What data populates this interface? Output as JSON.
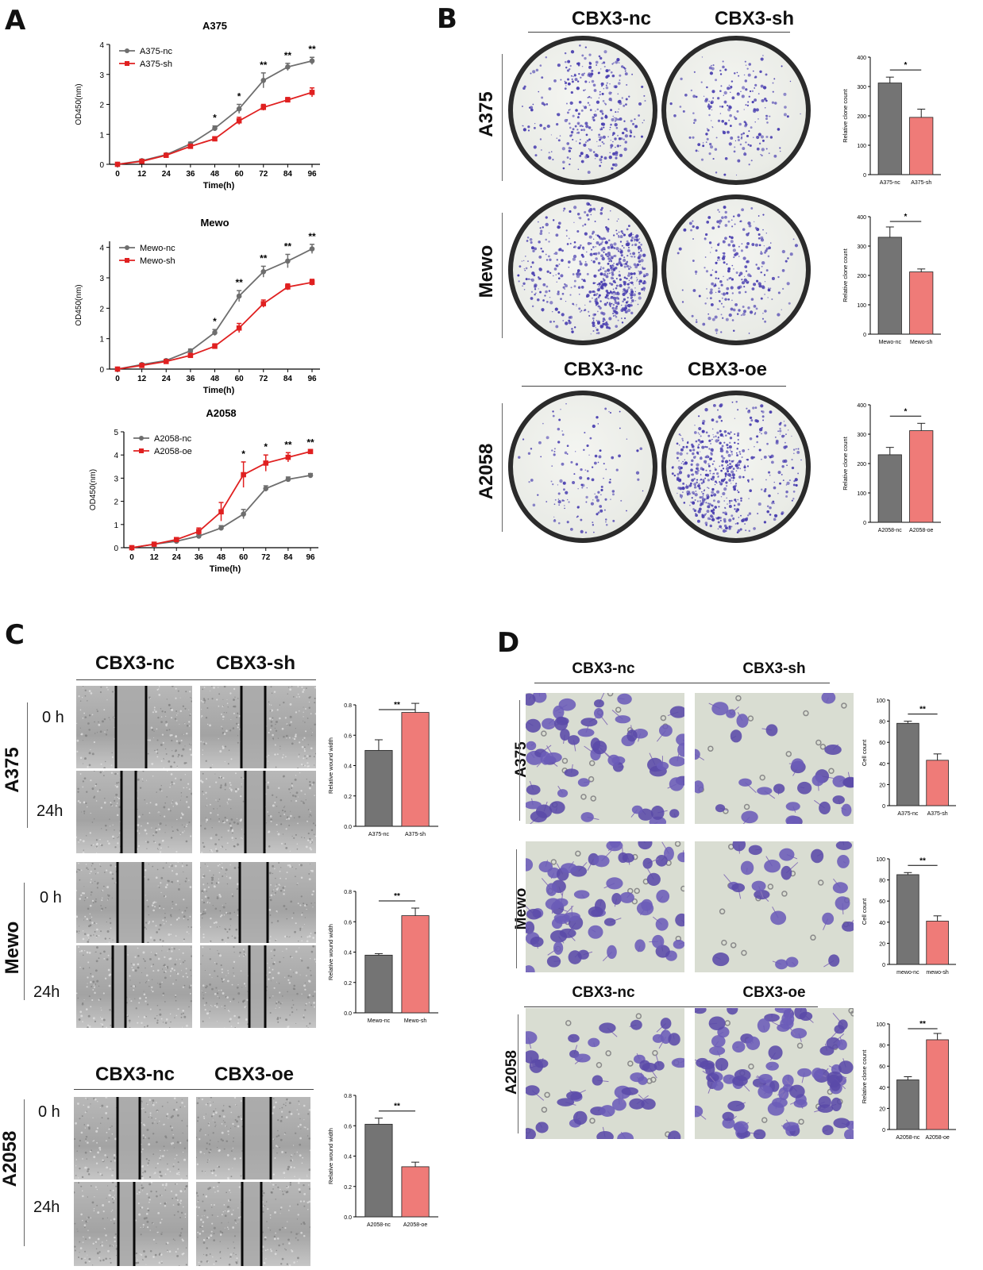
{
  "panels": {
    "a": "A",
    "b": "B",
    "c": "C",
    "d": "D"
  },
  "colors": {
    "nc": "#6e6e6e",
    "sh": "#e02020",
    "bar_nc": "#747474",
    "bar_sh": "#ef7b78",
    "stain": "#4a3fb0"
  },
  "labels": {
    "cbx3_nc": "CBX3-nc",
    "cbx3_sh": "CBX3-sh",
    "cbx3_oe": "CBX3-oe",
    "row_a375": "A375",
    "row_mewo": "Mewo",
    "row_a2058": "A2058",
    "t0": "0 h",
    "t24": "24h"
  },
  "chart_data": [
    {
      "id": "A1",
      "type": "line",
      "title": "A375",
      "xlabel": "Time(h)",
      "ylabel": "OD450(nm)",
      "ylim": [
        0,
        4
      ],
      "yticks": [
        0,
        1,
        2,
        3,
        4
      ],
      "x": [
        0,
        12,
        24,
        36,
        48,
        60,
        72,
        84,
        96
      ],
      "legend": "top-left",
      "series": [
        {
          "name": "A375-nc",
          "color": "#6e6e6e",
          "values": [
            0,
            0.12,
            0.32,
            0.68,
            1.2,
            1.85,
            2.8,
            3.25,
            3.45
          ],
          "err": [
            0,
            0.02,
            0.04,
            0.06,
            0.08,
            0.15,
            0.25,
            0.12,
            0.12
          ]
        },
        {
          "name": "A375-sh",
          "color": "#e02020",
          "values": [
            0,
            0.1,
            0.3,
            0.6,
            0.85,
            1.45,
            1.9,
            2.15,
            2.4
          ],
          "err": [
            0,
            0.02,
            0.04,
            0.05,
            0.07,
            0.12,
            0.1,
            0.08,
            0.15
          ]
        }
      ],
      "stars": [
        "",
        "",
        "",
        "",
        "*",
        "*",
        "**",
        "**",
        "**"
      ]
    },
    {
      "id": "A2",
      "type": "line",
      "title": "Mewo",
      "xlabel": "Time(h)",
      "ylabel": "OD450(nm)",
      "ylim": [
        0,
        4.2
      ],
      "yticks": [
        0,
        1,
        2,
        3,
        4
      ],
      "x": [
        0,
        12,
        24,
        36,
        48,
        60,
        72,
        84,
        96
      ],
      "legend": "top-left",
      "series": [
        {
          "name": "Mewo-nc",
          "color": "#6e6e6e",
          "values": [
            0,
            0.15,
            0.28,
            0.6,
            1.2,
            2.4,
            3.2,
            3.55,
            3.95
          ],
          "err": [
            0,
            0.02,
            0.04,
            0.06,
            0.1,
            0.18,
            0.18,
            0.22,
            0.15
          ]
        },
        {
          "name": "Mewo-sh",
          "color": "#e02020",
          "values": [
            0,
            0.12,
            0.25,
            0.45,
            0.75,
            1.35,
            2.15,
            2.7,
            2.85
          ],
          "err": [
            0,
            0.02,
            0.04,
            0.05,
            0.08,
            0.15,
            0.12,
            0.1,
            0.1
          ]
        }
      ],
      "stars": [
        "",
        "",
        "",
        "",
        "*",
        "**",
        "**",
        "**",
        "**"
      ]
    },
    {
      "id": "A3",
      "type": "line",
      "title": "A2058",
      "xlabel": "Time(h)",
      "ylabel": "OD450(nm)",
      "ylim": [
        0,
        5
      ],
      "yticks": [
        0,
        1,
        2,
        3,
        4,
        5
      ],
      "x": [
        0,
        12,
        24,
        36,
        48,
        60,
        72,
        84,
        96
      ],
      "legend": "top-left",
      "series": [
        {
          "name": "A2058-nc",
          "color": "#6e6e6e",
          "values": [
            0,
            0.15,
            0.28,
            0.5,
            0.85,
            1.45,
            2.55,
            2.95,
            3.12
          ],
          "err": [
            0,
            0.02,
            0.04,
            0.06,
            0.1,
            0.2,
            0.12,
            0.1,
            0.08
          ]
        },
        {
          "name": "A2058-oe",
          "color": "#e02020",
          "values": [
            0,
            0.15,
            0.35,
            0.7,
            1.55,
            3.15,
            3.65,
            3.9,
            4.15
          ],
          "err": [
            0,
            0.02,
            0.05,
            0.15,
            0.4,
            0.55,
            0.35,
            0.2,
            0.05
          ]
        }
      ],
      "stars": [
        "",
        "",
        "",
        "",
        "",
        "*",
        "*",
        "**",
        "**"
      ]
    },
    {
      "id": "B1",
      "type": "bar",
      "categories": [
        "A375-nc",
        "A375-sh"
      ],
      "values": [
        312,
        195
      ],
      "err": [
        20,
        28
      ],
      "ylabel": "Relative clone count",
      "ylim": [
        0,
        400
      ],
      "yticks": [
        0,
        100,
        200,
        300,
        400
      ],
      "sig": "*"
    },
    {
      "id": "B2",
      "type": "bar",
      "categories": [
        "Mewo-nc",
        "Mewo-sh"
      ],
      "values": [
        330,
        212
      ],
      "err": [
        35,
        10
      ],
      "ylabel": "Relative clone count",
      "ylim": [
        0,
        400
      ],
      "yticks": [
        0,
        100,
        200,
        300,
        400
      ],
      "sig": "*"
    },
    {
      "id": "B3",
      "type": "bar",
      "categories": [
        "A2058-nc",
        "A2058-oe"
      ],
      "values": [
        230,
        312
      ],
      "err": [
        25,
        25
      ],
      "ylabel": "Relative clone count",
      "ylim": [
        0,
        400
      ],
      "yticks": [
        0,
        100,
        200,
        300,
        400
      ],
      "sig": "*"
    },
    {
      "id": "C1",
      "type": "bar",
      "categories": [
        "A375-nc",
        "A375-sh"
      ],
      "values": [
        0.5,
        0.75
      ],
      "err": [
        0.07,
        0.06
      ],
      "ylabel": "Relative wound width",
      "ylim": [
        0,
        0.8
      ],
      "yticks": [
        0.0,
        0.2,
        0.4,
        0.6,
        0.8
      ],
      "sig": "**"
    },
    {
      "id": "C2",
      "type": "bar",
      "categories": [
        "Mewo-nc",
        "Mewo-sh"
      ],
      "values": [
        0.38,
        0.64
      ],
      "err": [
        0.01,
        0.05
      ],
      "ylabel": "Relative wound width",
      "ylim": [
        0,
        0.8
      ],
      "yticks": [
        0.0,
        0.2,
        0.4,
        0.6,
        0.8
      ],
      "sig": "**"
    },
    {
      "id": "C3",
      "type": "bar",
      "categories": [
        "A2058-nc",
        "A2058-oe"
      ],
      "values": [
        0.61,
        0.33
      ],
      "err": [
        0.04,
        0.03
      ],
      "ylabel": "Relative wound width",
      "ylim": [
        0,
        0.8
      ],
      "yticks": [
        0.0,
        0.2,
        0.4,
        0.6,
        0.8
      ],
      "sig": "**"
    },
    {
      "id": "D1",
      "type": "bar",
      "categories": [
        "A375-nc",
        "A375-sh"
      ],
      "values": [
        78,
        43
      ],
      "err": [
        2,
        6
      ],
      "ylabel": "Cell count",
      "ylim": [
        0,
        100
      ],
      "yticks": [
        0,
        20,
        40,
        60,
        80,
        100
      ],
      "sig": "**"
    },
    {
      "id": "D2",
      "type": "bar",
      "categories": [
        "mewo-nc",
        "mewo-sh"
      ],
      "values": [
        85,
        41
      ],
      "err": [
        2,
        5
      ],
      "ylabel": "Cell count",
      "ylim": [
        0,
        100
      ],
      "yticks": [
        0,
        20,
        40,
        60,
        80,
        100
      ],
      "sig": "**"
    },
    {
      "id": "D3",
      "type": "bar",
      "categories": [
        "A2058-nc",
        "A2058-oe"
      ],
      "values": [
        47,
        85
      ],
      "err": [
        3,
        6
      ],
      "ylabel": "Relative clone count",
      "ylim": [
        0,
        100
      ],
      "yticks": [
        0,
        20,
        40,
        60,
        80,
        100
      ],
      "sig": "**"
    }
  ]
}
